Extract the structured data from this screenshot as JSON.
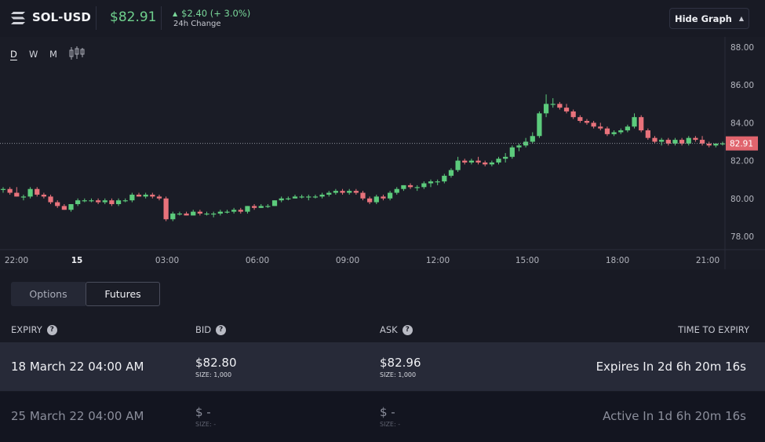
{
  "header": {
    "pair": "SOL-USD",
    "price": "$82.91",
    "change": "$2.40 (+ 3.0%)",
    "change_label": "24h Change",
    "hide_graph": "Hide Graph"
  },
  "colors": {
    "up": "#5ccb7c",
    "down": "#e8727b",
    "price_tag": "#e0646d"
  },
  "timeframes": [
    "D",
    "W",
    "M"
  ],
  "chart_data": {
    "type": "candlestick",
    "ylim": [
      77.5,
      88.5
    ],
    "y_ticks": [
      "78.00",
      "80.00",
      "82.00",
      "84.00",
      "86.00",
      "88.00"
    ],
    "x_ticks": [
      "22:00",
      "15",
      "03:00",
      "06:00",
      "09:00",
      "12:00",
      "15:00",
      "18:00",
      "21:00"
    ],
    "last_price": "82.91",
    "candles": [
      [
        80.5,
        80.6,
        80.3,
        80.5
      ],
      [
        80.5,
        80.6,
        80.2,
        80.3
      ],
      [
        80.3,
        80.6,
        80.1,
        80.1
      ],
      [
        80.1,
        80.2,
        79.9,
        80.1
      ],
      [
        80.1,
        80.6,
        80.0,
        80.5
      ],
      [
        80.5,
        80.6,
        80.1,
        80.2
      ],
      [
        80.2,
        80.3,
        80.0,
        80.1
      ],
      [
        80.1,
        80.2,
        79.7,
        79.8
      ],
      [
        79.8,
        79.9,
        79.5,
        79.6
      ],
      [
        79.6,
        79.7,
        79.4,
        79.4
      ],
      [
        79.4,
        79.7,
        79.3,
        79.7
      ],
      [
        79.7,
        80.0,
        79.6,
        79.9
      ],
      [
        79.9,
        80.0,
        79.8,
        79.9
      ],
      [
        79.9,
        80.0,
        79.8,
        79.9
      ],
      [
        79.9,
        80.0,
        79.7,
        79.8
      ],
      [
        79.8,
        80.0,
        79.7,
        79.9
      ],
      [
        79.9,
        80.0,
        79.6,
        79.7
      ],
      [
        79.7,
        80.0,
        79.6,
        79.9
      ],
      [
        79.9,
        80.0,
        79.8,
        79.9
      ],
      [
        79.9,
        80.3,
        79.8,
        80.2
      ],
      [
        80.2,
        80.3,
        80.1,
        80.1
      ],
      [
        80.1,
        80.3,
        80.0,
        80.2
      ],
      [
        80.2,
        80.3,
        80.0,
        80.1
      ],
      [
        80.1,
        80.2,
        79.9,
        80.0
      ],
      [
        80.0,
        80.1,
        78.8,
        78.9
      ],
      [
        78.9,
        79.3,
        78.8,
        79.2
      ],
      [
        79.2,
        79.3,
        79.1,
        79.2
      ],
      [
        79.2,
        79.3,
        79.1,
        79.1
      ],
      [
        79.1,
        79.4,
        79.1,
        79.3
      ],
      [
        79.3,
        79.4,
        79.1,
        79.2
      ],
      [
        79.2,
        79.3,
        79.1,
        79.2
      ],
      [
        79.2,
        79.3,
        79.0,
        79.2
      ],
      [
        79.2,
        79.4,
        79.1,
        79.3
      ],
      [
        79.3,
        79.4,
        79.2,
        79.3
      ],
      [
        79.3,
        79.5,
        79.2,
        79.4
      ],
      [
        79.4,
        79.5,
        79.2,
        79.3
      ],
      [
        79.3,
        79.6,
        79.2,
        79.6
      ],
      [
        79.6,
        79.7,
        79.4,
        79.5
      ],
      [
        79.5,
        79.7,
        79.5,
        79.6
      ],
      [
        79.6,
        79.7,
        79.5,
        79.6
      ],
      [
        79.6,
        79.9,
        79.6,
        79.9
      ],
      [
        79.9,
        80.1,
        79.8,
        80.0
      ],
      [
        80.0,
        80.1,
        79.9,
        80.0
      ],
      [
        80.0,
        80.2,
        80.0,
        80.1
      ],
      [
        80.1,
        80.2,
        80.0,
        80.1
      ],
      [
        80.1,
        80.2,
        79.9,
        80.1
      ],
      [
        80.1,
        80.2,
        80.0,
        80.1
      ],
      [
        80.1,
        80.3,
        80.0,
        80.2
      ],
      [
        80.2,
        80.4,
        80.1,
        80.3
      ],
      [
        80.3,
        80.5,
        80.2,
        80.4
      ],
      [
        80.4,
        80.5,
        80.2,
        80.3
      ],
      [
        80.3,
        80.5,
        80.2,
        80.4
      ],
      [
        80.4,
        80.5,
        80.2,
        80.3
      ],
      [
        80.3,
        80.4,
        79.9,
        80.0
      ],
      [
        80.0,
        80.1,
        79.7,
        79.8
      ],
      [
        79.8,
        80.2,
        79.7,
        80.1
      ],
      [
        80.1,
        80.2,
        79.9,
        80.0
      ],
      [
        80.0,
        80.4,
        79.9,
        80.3
      ],
      [
        80.3,
        80.6,
        80.2,
        80.5
      ],
      [
        80.5,
        80.7,
        80.4,
        80.7
      ],
      [
        80.7,
        80.8,
        80.5,
        80.6
      ],
      [
        80.6,
        80.7,
        80.4,
        80.6
      ],
      [
        80.6,
        80.9,
        80.5,
        80.8
      ],
      [
        80.8,
        81.0,
        80.6,
        80.9
      ],
      [
        80.9,
        81.0,
        80.7,
        80.9
      ],
      [
        80.9,
        81.3,
        80.8,
        81.2
      ],
      [
        81.2,
        81.6,
        81.1,
        81.5
      ],
      [
        81.5,
        82.2,
        81.4,
        82.0
      ],
      [
        82.0,
        82.1,
        81.8,
        81.9
      ],
      [
        81.9,
        82.1,
        81.8,
        82.0
      ],
      [
        82.0,
        82.2,
        81.8,
        81.9
      ],
      [
        81.9,
        82.0,
        81.7,
        81.8
      ],
      [
        81.8,
        82.0,
        81.7,
        81.9
      ],
      [
        81.9,
        82.2,
        81.8,
        82.1
      ],
      [
        82.1,
        82.4,
        81.9,
        82.2
      ],
      [
        82.2,
        82.8,
        82.1,
        82.7
      ],
      [
        82.7,
        82.9,
        82.5,
        82.8
      ],
      [
        82.8,
        83.2,
        82.7,
        83.0
      ],
      [
        83.0,
        83.5,
        82.9,
        83.3
      ],
      [
        83.3,
        84.6,
        83.2,
        84.5
      ],
      [
        84.5,
        85.5,
        84.3,
        85.0
      ],
      [
        85.0,
        85.3,
        84.8,
        85.0
      ],
      [
        85.0,
        85.1,
        84.7,
        84.8
      ],
      [
        84.8,
        85.0,
        84.5,
        84.6
      ],
      [
        84.6,
        84.7,
        84.2,
        84.3
      ],
      [
        84.3,
        84.4,
        84.0,
        84.1
      ],
      [
        84.1,
        84.2,
        83.9,
        84.0
      ],
      [
        84.0,
        84.1,
        83.7,
        83.8
      ],
      [
        83.8,
        84.0,
        83.6,
        83.7
      ],
      [
        83.7,
        83.8,
        83.3,
        83.4
      ],
      [
        83.4,
        83.6,
        83.3,
        83.5
      ],
      [
        83.5,
        83.7,
        83.4,
        83.6
      ],
      [
        83.6,
        83.9,
        83.5,
        83.8
      ],
      [
        83.8,
        84.5,
        83.7,
        84.3
      ],
      [
        84.3,
        84.4,
        83.5,
        83.6
      ],
      [
        83.6,
        83.7,
        83.1,
        83.2
      ],
      [
        83.2,
        83.3,
        82.9,
        83.0
      ],
      [
        83.0,
        83.2,
        82.8,
        83.1
      ],
      [
        83.1,
        83.2,
        82.8,
        82.9
      ],
      [
        82.9,
        83.2,
        82.8,
        83.1
      ],
      [
        83.1,
        83.2,
        82.8,
        82.9
      ],
      [
        82.9,
        83.3,
        82.8,
        83.2
      ],
      [
        83.2,
        83.3,
        83.0,
        83.1
      ],
      [
        83.1,
        83.3,
        82.8,
        82.9
      ],
      [
        82.9,
        83.0,
        82.7,
        82.8
      ],
      [
        82.8,
        82.9,
        82.7,
        82.9
      ],
      [
        82.9,
        83.0,
        82.8,
        82.91
      ]
    ]
  },
  "tabs": [
    "Options",
    "Futures"
  ],
  "table": {
    "headers": {
      "expiry": "EXPIRY",
      "bid": "BID",
      "ask": "ASK",
      "tte": "TIME TO EXPIRY"
    },
    "help_glyph": "?",
    "rows": [
      {
        "expiry": "18 March 22 04:00 AM",
        "bid": "$82.80",
        "bid_size": "SIZE: 1,000",
        "ask": "$82.96",
        "ask_size": "SIZE: 1,000",
        "tte": "Expires In 2d 6h 20m 16s"
      },
      {
        "expiry": "25 March 22 04:00 AM",
        "bid": "$ -",
        "bid_size": "SIZE: -",
        "ask": "$ -",
        "ask_size": "SIZE: -",
        "tte": "Active In 1d 6h 20m 16s"
      }
    ]
  }
}
